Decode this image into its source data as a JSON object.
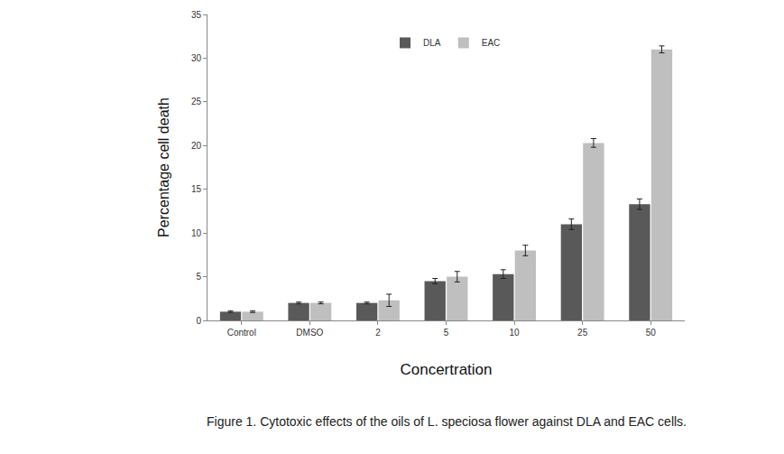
{
  "chart_data": {
    "type": "bar",
    "caption": "Figure 1. Cytotoxic effects of the oils of L. speciosa flower against DLA and EAC cells.",
    "x_label": "Concertration",
    "y_label": "Percentage cell death",
    "categories": [
      "Control",
      "DMSO",
      "2",
      "5",
      "10",
      "25",
      "50"
    ],
    "series": [
      {
        "name": "DLA",
        "color": "#595959",
        "values": [
          1.0,
          2.0,
          2.0,
          4.5,
          5.3,
          11.0,
          13.3
        ],
        "error": [
          0.1,
          0.1,
          0.1,
          0.3,
          0.5,
          0.6,
          0.6
        ]
      },
      {
        "name": "EAC",
        "color": "#bfbfbf",
        "values": [
          1.0,
          2.0,
          2.3,
          5.0,
          8.0,
          20.3,
          31.0
        ],
        "error": [
          0.1,
          0.1,
          0.7,
          0.6,
          0.6,
          0.5,
          0.4
        ]
      }
    ],
    "ylim": [
      0,
      35
    ],
    "yticks": [
      0,
      5,
      10,
      15,
      20,
      25,
      30,
      35
    ],
    "grid": false,
    "legend": "top"
  }
}
